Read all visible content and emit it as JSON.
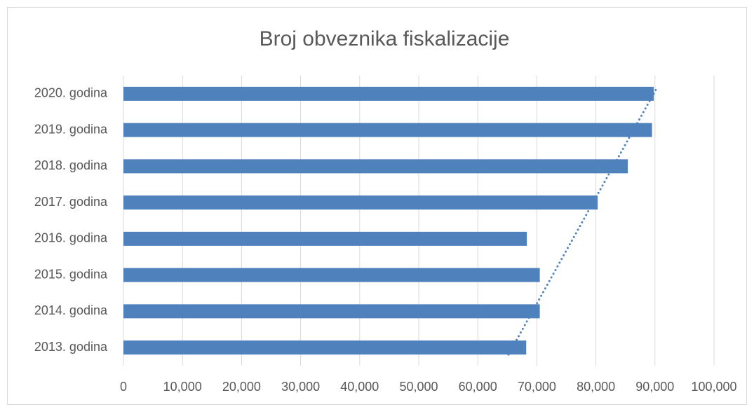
{
  "chart_data": {
    "type": "bar",
    "orientation": "horizontal",
    "title": "Broj obveznika fiskalizacije",
    "categories": [
      "2013. godina",
      "2014. godina",
      "2015. godina",
      "2016. godina",
      "2017. godina",
      "2018. godina",
      "2019. godina",
      "2020. godina"
    ],
    "values": [
      68200,
      70500,
      70500,
      68300,
      80300,
      85400,
      89500,
      89800
    ],
    "color": "#4f81bd",
    "xlim": [
      0,
      100000
    ],
    "xticks": [
      0,
      {
        "value": 10000,
        "label": "10,000"
      },
      {
        "value": 20000,
        "label": "20,000"
      },
      {
        "value": 30000,
        "label": "30,000"
      },
      {
        "value": 40000,
        "label": "40,000"
      },
      {
        "value": 50000,
        "label": "50,000"
      },
      {
        "value": 60000,
        "label": "60,000"
      },
      {
        "value": 70000,
        "label": "70,000"
      },
      {
        "value": 80000,
        "label": "80,000"
      },
      {
        "value": 90000,
        "label": "90,000"
      },
      {
        "value": 100000,
        "label": "100,000"
      }
    ],
    "grid": true,
    "trendline": "linear"
  }
}
